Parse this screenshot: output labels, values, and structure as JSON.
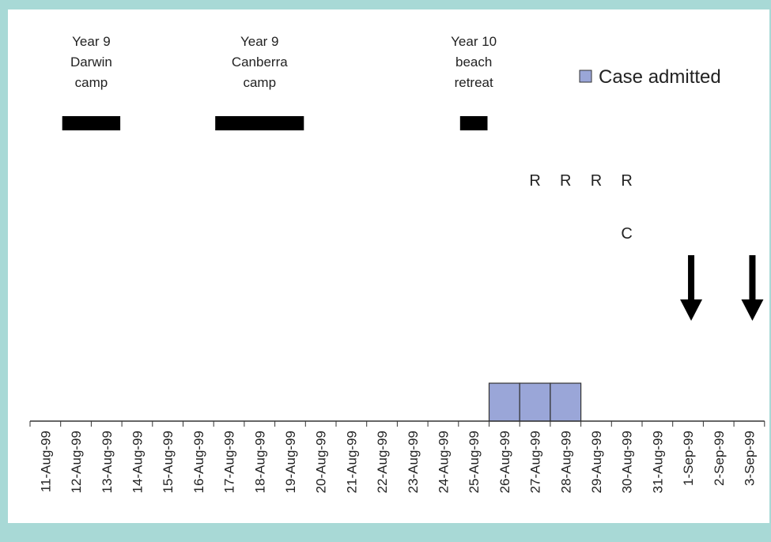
{
  "chart_data": {
    "type": "bar",
    "categories": [
      "11-Aug-99",
      "12-Aug-99",
      "13-Aug-99",
      "14-Aug-99",
      "15-Aug-99",
      "16-Aug-99",
      "17-Aug-99",
      "18-Aug-99",
      "19-Aug-99",
      "20-Aug-99",
      "21-Aug-99",
      "22-Aug-99",
      "23-Aug-99",
      "24-Aug-99",
      "25-Aug-99",
      "26-Aug-99",
      "27-Aug-99",
      "28-Aug-99",
      "29-Aug-99",
      "30-Aug-99",
      "31-Aug-99",
      "1-Sep-99",
      "2-Sep-99",
      "3-Sep-99"
    ],
    "series": [
      {
        "name": "Case admitted",
        "color": "#9aa6d8",
        "values": [
          0,
          0,
          0,
          0,
          0,
          0,
          0,
          0,
          0,
          0,
          0,
          0,
          0,
          0,
          0,
          1,
          1,
          1,
          0,
          0,
          0,
          0,
          0,
          0
        ]
      }
    ],
    "legend_position": "top-right",
    "grid": false,
    "events": [
      {
        "label_lines": [
          "Year 9",
          "Darwin",
          "camp"
        ],
        "start": "12-Aug-99",
        "end": "13-Aug-99"
      },
      {
        "label_lines": [
          "Year 9",
          "Canberra",
          "camp"
        ],
        "start": "17-Aug-99",
        "end": "19-Aug-99"
      },
      {
        "label_lines": [
          "Year 10",
          "beach",
          "retreat"
        ],
        "start": "25-Aug-99",
        "end": "25-Aug-99"
      }
    ],
    "markers": [
      {
        "text": "R",
        "date": "27-Aug-99",
        "row": "upper"
      },
      {
        "text": "R",
        "date": "28-Aug-99",
        "row": "upper"
      },
      {
        "text": "R",
        "date": "29-Aug-99",
        "row": "upper"
      },
      {
        "text": "R",
        "date": "30-Aug-99",
        "row": "upper"
      },
      {
        "text": "C",
        "date": "30-Aug-99",
        "row": "lower"
      }
    ],
    "arrows": [
      {
        "date": "1-Sep-99",
        "direction": "down"
      },
      {
        "date": "3-Sep-99",
        "direction": "down"
      }
    ]
  }
}
